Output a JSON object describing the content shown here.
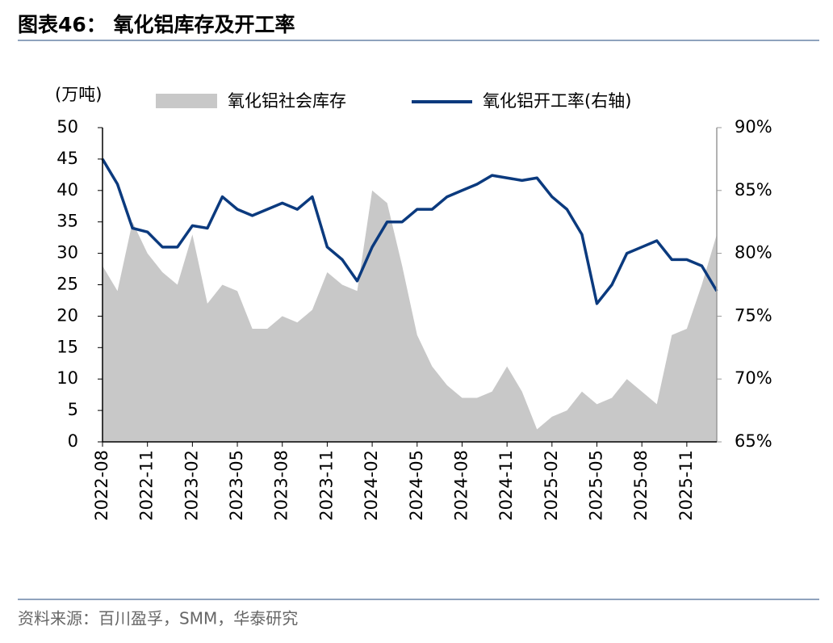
{
  "header": {
    "title": "图表46：  氧化铝库存及开工率"
  },
  "chart_data": {
    "type": "area-line",
    "y_axis_label": "(万吨)",
    "x": [
      "2022-08",
      "2022-09",
      "2022-10",
      "2022-11",
      "2022-12",
      "2023-01",
      "2023-02",
      "2023-03",
      "2023-04",
      "2023-05",
      "2023-06",
      "2023-07",
      "2023-08",
      "2023-09",
      "2023-10",
      "2023-11",
      "2023-12",
      "2024-01",
      "2024-02",
      "2024-03",
      "2024-04",
      "2024-05",
      "2024-06",
      "2024-07",
      "2024-08",
      "2024-09",
      "2024-10",
      "2024-11",
      "2024-12",
      "2025-01",
      "2025-02",
      "2025-03",
      "2025-04",
      "2025-05",
      "2025-06",
      "2025-07",
      "2025-08",
      "2025-09",
      "2025-10",
      "2025-11",
      "2025-12",
      "2026-01"
    ],
    "series": [
      {
        "name": "氧化铝社会库存",
        "color": "#c8c8c8",
        "axis": "y",
        "values": [
          28,
          24,
          35,
          30,
          27,
          25,
          33,
          22,
          25,
          24,
          18,
          18,
          20,
          19,
          21,
          27,
          25,
          24,
          40,
          38,
          28,
          17,
          12,
          9,
          7,
          7,
          8,
          12,
          8,
          2,
          4,
          5,
          8,
          6,
          7,
          10,
          8,
          6,
          17,
          18,
          25,
          33
        ]
      },
      {
        "name": "氧化铝开工率(右轴)",
        "color": "#0b3a7e",
        "axis": "y2",
        "values": [
          87.5,
          85.5,
          82,
          81.7,
          80.5,
          80.5,
          82.2,
          82,
          84.5,
          83.5,
          83,
          83.5,
          84,
          83.5,
          84.5,
          80.5,
          79.5,
          77.8,
          80.5,
          82.5,
          82.5,
          83.5,
          83.5,
          84.5,
          85,
          85.5,
          86.2,
          86,
          85.8,
          86,
          84.5,
          83.5,
          81.5,
          76,
          77.5,
          80,
          80.5,
          81,
          79.5,
          79.5,
          79,
          77
        ]
      }
    ],
    "xticks": [
      "2022-08",
      "2022-11",
      "2023-02",
      "2023-05",
      "2023-08",
      "2023-11",
      "2024-02",
      "2024-05",
      "2024-08",
      "2024-11",
      "2025-02",
      "2025-05",
      "2025-08",
      "2025-11"
    ],
    "ylim": [
      0,
      50
    ],
    "yticks": [
      0,
      5,
      10,
      15,
      20,
      25,
      30,
      35,
      40,
      45,
      50
    ],
    "y2lim": [
      65,
      90
    ],
    "y2ticks": [
      {
        "value": 65,
        "label": "65%"
      },
      {
        "value": 70,
        "label": "70%"
      },
      {
        "value": 75,
        "label": "75%"
      },
      {
        "value": 80,
        "label": "80%"
      },
      {
        "value": 85,
        "label": "85%"
      },
      {
        "value": 90,
        "label": "90%"
      }
    ]
  },
  "footer": {
    "source": "资料来源：百川盈孚，SMM，华泰研究"
  }
}
